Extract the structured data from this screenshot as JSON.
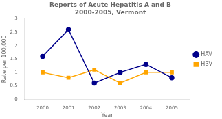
{
  "chart_data": {
    "type": "line",
    "title": "Reports of Acute Hepatitis A and B\n2000-2005, Vermont",
    "x_label": "Year",
    "y_label": "Rate per 100,000",
    "x": [
      2000,
      2001,
      2002,
      2003,
      2004,
      2005
    ],
    "series": [
      {
        "name": "HAV",
        "color": "#00008B",
        "marker": "circle",
        "values": [
          1.6,
          2.6,
          0.6,
          1.0,
          1.3,
          0.8
        ]
      },
      {
        "name": "HBV",
        "color": "#FFA500",
        "marker": "square",
        "values": [
          1.0,
          0.8,
          1.1,
          0.6,
          1.0,
          1.0
        ]
      }
    ],
    "xlim": [
      1999.3,
      2005.7
    ],
    "xticks": [
      2000,
      2001,
      2002,
      2003,
      2004,
      2005
    ],
    "ylim": [
      0,
      3
    ],
    "yticks": [
      0,
      0.5,
      1,
      1.5,
      2,
      2.5,
      3
    ],
    "grid": false,
    "legend": "right"
  }
}
